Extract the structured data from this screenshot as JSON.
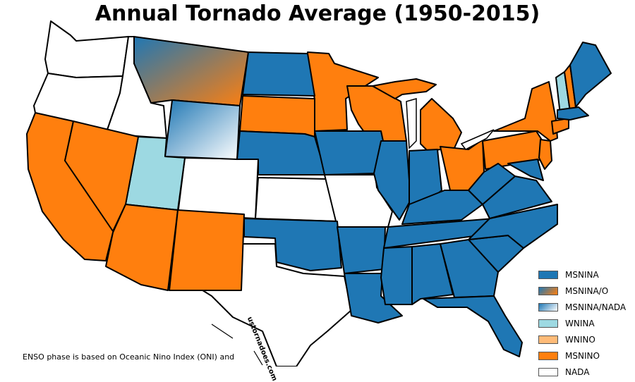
{
  "title": "Annual Tornado Average (1950-2015)",
  "colors": {
    "MSNINA": "#1f77b4",
    "MSNINA_O": "gradient-blue-orange",
    "MSNINA_NADA": "gradient-blue-white",
    "WNINA": "#9dd9e2",
    "WNINO": "#ffbb78",
    "MSNINO": "#ff7f0e",
    "NADA": "#ffffff"
  },
  "legend": [
    {
      "label": "MSNINA",
      "key": "MSNINA"
    },
    {
      "label": "MSNINA/O",
      "key": "MSNINA_O"
    },
    {
      "label": "MSNINA/NADA",
      "key": "MSNINA_NADA"
    },
    {
      "label": "WNINA",
      "key": "WNINA"
    },
    {
      "label": "WNINO",
      "key": "WNINO"
    },
    {
      "label": "MSNINO",
      "key": "MSNINO"
    },
    {
      "label": "NADA",
      "key": "NADA"
    }
  ],
  "footnote": "ENSO phase is based on Oceanic Nino Index (ONI) and",
  "watermark": "ustornadoes.com"
}
